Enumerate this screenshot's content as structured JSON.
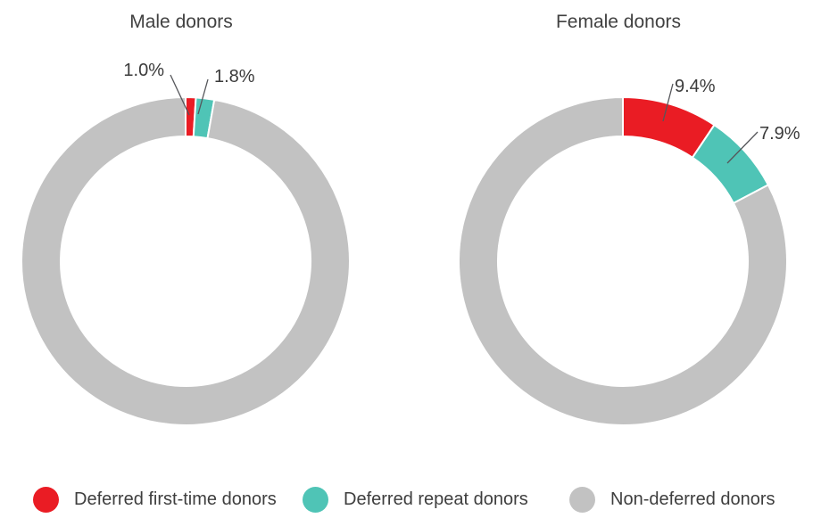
{
  "page": {
    "background_color": "#ffffff"
  },
  "colors": {
    "deferred_first_time": "#EA1C24",
    "deferred_repeat": "#4FC4B6",
    "non_deferred": "#C2C2C2",
    "leader_line": "#55565a",
    "text": "#3e3e3e"
  },
  "chart_data": [
    {
      "type": "pie",
      "variant": "donut",
      "title": "Male donors",
      "unit": "%",
      "direction": "clockwise",
      "start_angle": "12 o'clock",
      "inner_radius_ratio": 0.76,
      "segments": [
        {
          "name": "Deferred first-time donors",
          "value": 1.0,
          "label": "1.0%",
          "color": "#EA1C24"
        },
        {
          "name": "Deferred repeat donors",
          "value": 1.8,
          "label": "1.8%",
          "color": "#4FC4B6"
        },
        {
          "name": "Non-deferred donors",
          "value": 97.2,
          "label": "",
          "color": "#C2C2C2"
        }
      ]
    },
    {
      "type": "pie",
      "variant": "donut",
      "title": "Female donors",
      "unit": "%",
      "direction": "clockwise",
      "start_angle": "12 o'clock",
      "inner_radius_ratio": 0.76,
      "segments": [
        {
          "name": "Deferred first-time donors",
          "value": 9.4,
          "label": "9.4%",
          "color": "#EA1C24"
        },
        {
          "name": "Deferred repeat donors",
          "value": 7.9,
          "label": "7.9%",
          "color": "#4FC4B6"
        },
        {
          "name": "Non-deferred donors",
          "value": 82.7,
          "label": "",
          "color": "#C2C2C2"
        }
      ]
    }
  ],
  "legend": {
    "items": [
      {
        "label": "Deferred first-time donors",
        "color": "#EA1C24"
      },
      {
        "label": "Deferred repeat donors",
        "color": "#4FC4B6"
      },
      {
        "label": "Non-deferred donors",
        "color": "#C2C2C2"
      }
    ]
  }
}
